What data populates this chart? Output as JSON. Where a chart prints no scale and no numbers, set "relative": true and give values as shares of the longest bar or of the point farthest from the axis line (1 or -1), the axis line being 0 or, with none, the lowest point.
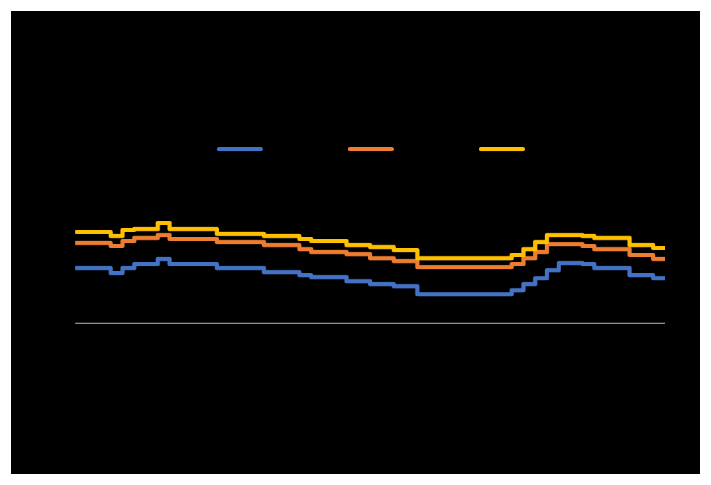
{
  "chart_data": {
    "type": "step",
    "relative": true,
    "categories": [
      null,
      null,
      null,
      null,
      null,
      null,
      null,
      null,
      null,
      null,
      null,
      null,
      null,
      null,
      null,
      null,
      null,
      null,
      null,
      null,
      null,
      null,
      null,
      null,
      null,
      null,
      null,
      null,
      null,
      null,
      null,
      null,
      null,
      null,
      null,
      null,
      null,
      null,
      null,
      null,
      null,
      null,
      null,
      null,
      null,
      null,
      null,
      null,
      null,
      null,
      null
    ],
    "series": [
      {
        "color": "#4472c4",
        "values": [
          0.55,
          0.55,
          0.55,
          0.5,
          0.55,
          0.59,
          0.59,
          0.64,
          0.59,
          0.59,
          0.59,
          0.59,
          0.55,
          0.55,
          0.55,
          0.55,
          0.51,
          0.51,
          0.51,
          0.48,
          0.46,
          0.46,
          0.46,
          0.42,
          0.42,
          0.39,
          0.39,
          0.37,
          0.37,
          0.29,
          0.29,
          0.29,
          0.29,
          0.29,
          0.29,
          0.29,
          0.29,
          0.33,
          0.39,
          0.45,
          0.53,
          0.6,
          0.6,
          0.59,
          0.55,
          0.55,
          0.55,
          0.48,
          0.48,
          0.45,
          0.45
        ]
      },
      {
        "color": "#ed7d31",
        "values": [
          0.8,
          0.8,
          0.8,
          0.77,
          0.82,
          0.85,
          0.85,
          0.88,
          0.84,
          0.84,
          0.84,
          0.84,
          0.81,
          0.81,
          0.81,
          0.81,
          0.78,
          0.78,
          0.78,
          0.74,
          0.71,
          0.71,
          0.71,
          0.69,
          0.69,
          0.65,
          0.65,
          0.62,
          0.62,
          0.56,
          0.56,
          0.56,
          0.56,
          0.56,
          0.56,
          0.56,
          0.56,
          0.59,
          0.65,
          0.71,
          0.79,
          0.79,
          0.79,
          0.77,
          0.74,
          0.74,
          0.74,
          0.68,
          0.68,
          0.64,
          0.64
        ]
      },
      {
        "color": "#ffc000",
        "values": [
          0.91,
          0.91,
          0.91,
          0.87,
          0.93,
          0.94,
          0.94,
          1,
          0.94,
          0.94,
          0.94,
          0.94,
          0.89,
          0.89,
          0.89,
          0.89,
          0.87,
          0.87,
          0.87,
          0.84,
          0.82,
          0.82,
          0.82,
          0.78,
          0.78,
          0.76,
          0.76,
          0.73,
          0.73,
          0.65,
          0.65,
          0.65,
          0.65,
          0.65,
          0.65,
          0.65,
          0.65,
          0.68,
          0.74,
          0.81,
          0.88,
          0.88,
          0.88,
          0.87,
          0.85,
          0.85,
          0.85,
          0.78,
          0.78,
          0.75,
          0.75
        ]
      }
    ]
  }
}
